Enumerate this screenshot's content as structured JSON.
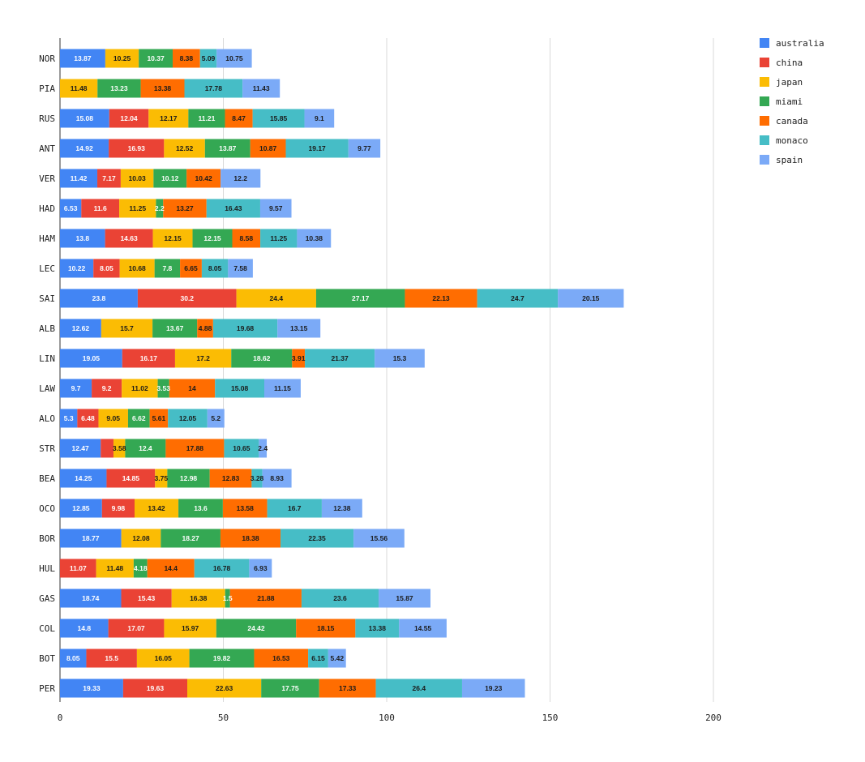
{
  "chart_data": {
    "type": "bar",
    "orientation": "horizontal",
    "stacked": true,
    "title": "",
    "xlabel": "",
    "ylabel": "",
    "xlim": [
      0,
      200
    ],
    "x_ticks": [
      0,
      50,
      100,
      150,
      200
    ],
    "grid": "vertical",
    "legend_position": "top-right",
    "categories": [
      "NOR",
      "PIA",
      "RUS",
      "ANT",
      "VER",
      "HAD",
      "HAM",
      "LEC",
      "SAI",
      "ALB",
      "LIN",
      "LAW",
      "ALO",
      "STR",
      "BEA",
      "OCO",
      "BOR",
      "HUL",
      "GAS",
      "COL",
      "BOT",
      "PER"
    ],
    "series": [
      {
        "name": "australia",
        "color": "#4285f4",
        "values": [
          13.87,
          0,
          15.08,
          14.92,
          11.42,
          6.53,
          13.8,
          10.22,
          23.8,
          12.62,
          19.05,
          9.7,
          5.3,
          12.47,
          14.25,
          12.85,
          18.77,
          0,
          18.74,
          14.8,
          8.05,
          19.33
        ]
      },
      {
        "name": "china",
        "color": "#ea4335",
        "values": [
          0,
          0,
          12.04,
          16.93,
          7.17,
          11.6,
          14.63,
          8.05,
          30.2,
          0,
          16.17,
          9.2,
          6.48,
          3.9,
          14.85,
          9.98,
          0,
          11.07,
          15.43,
          17.07,
          15.5,
          19.63
        ]
      },
      {
        "name": "japan",
        "color": "#fbbc04",
        "values": [
          10.25,
          11.48,
          12.17,
          12.52,
          10.03,
          11.25,
          12.15,
          10.68,
          24.4,
          15.7,
          17.2,
          11.02,
          9.05,
          3.58,
          3.75,
          13.42,
          12.08,
          11.48,
          16.38,
          15.97,
          16.05,
          22.63
        ]
      },
      {
        "name": "miami",
        "color": "#34a853",
        "values": [
          10.37,
          13.23,
          11.21,
          13.87,
          10.12,
          2.2,
          12.15,
          7.8,
          27.17,
          13.67,
          18.62,
          3.53,
          6.62,
          12.4,
          12.98,
          13.6,
          18.27,
          4.18,
          1.5,
          24.42,
          19.82,
          17.75
        ]
      },
      {
        "name": "canada",
        "color": "#ff6d01",
        "values": [
          8.38,
          13.38,
          8.47,
          10.87,
          10.42,
          13.27,
          8.58,
          6.65,
          22.13,
          4.88,
          3.91,
          14,
          5.61,
          17.88,
          12.83,
          13.58,
          18.38,
          14.4,
          21.88,
          18.15,
          16.53,
          17.33
        ]
      },
      {
        "name": "monaco",
        "color": "#46bdc6",
        "values": [
          5.09,
          17.78,
          15.85,
          19.17,
          0,
          16.43,
          11.25,
          8.05,
          24.7,
          19.68,
          21.37,
          15.08,
          12.05,
          10.65,
          3.28,
          16.7,
          22.35,
          16.78,
          23.6,
          13.38,
          6.15,
          26.4
        ]
      },
      {
        "name": "spain",
        "color": "#7baaf7",
        "values": [
          10.75,
          11.43,
          9.1,
          9.77,
          12.2,
          9.57,
          10.38,
          7.58,
          20.15,
          13.15,
          15.3,
          11.15,
          5.2,
          2.4,
          8.93,
          12.38,
          15.56,
          6.93,
          15.87,
          14.55,
          5.42,
          19.23
        ]
      }
    ],
    "data_labels": [
      [
        "13.87",
        "",
        "10.25",
        "10.37",
        "8.38",
        "5.09",
        "10.75"
      ],
      [
        "",
        "",
        "11.48",
        "13.23",
        "13.38",
        "17.78",
        "11.43"
      ],
      [
        "15.08",
        "12.04",
        "12.17",
        "11.21",
        "8.47",
        "15.85",
        "9.1"
      ],
      [
        "14.92",
        "16.93",
        "12.52",
        "13.87",
        "10.87",
        "19.17",
        "9.77"
      ],
      [
        "11.42",
        "7.17",
        "10.03",
        "10.12",
        "10.42",
        "",
        "12.2"
      ],
      [
        "6.53",
        "11.6",
        "11.25",
        "2.2",
        "13.27",
        "16.43",
        "9.57"
      ],
      [
        "13.8",
        "14.63",
        "12.15",
        "12.15",
        "8.58",
        "11.25",
        "10.38"
      ],
      [
        "10.22",
        "8.05",
        "10.68",
        "7.8",
        "6.65",
        "8.05",
        "7.58"
      ],
      [
        "23.8",
        "30.2",
        "24.4",
        "27.17",
        "22.13",
        "24.7",
        "20.15"
      ],
      [
        "12.62",
        "",
        "15.7",
        "13.67",
        "4.88",
        "19.68",
        "13.15"
      ],
      [
        "19.05",
        "16.17",
        "17.2",
        "18.62",
        "3.91",
        "21.37",
        "15.3"
      ],
      [
        "9.7",
        "9.2",
        "11.02",
        "3.53",
        "14",
        "15.08",
        "11.15"
      ],
      [
        "5.3",
        "6.48",
        "9.05",
        "6.62",
        "5.61",
        "12.05",
        "5.2"
      ],
      [
        "12.47",
        "",
        "3.58",
        "12.4",
        "17.88",
        "10.65",
        "2.4"
      ],
      [
        "14.25",
        "14.85",
        "3.75",
        "12.98",
        "12.83",
        "3.28",
        "8.93"
      ],
      [
        "12.85",
        "9.98",
        "13.42",
        "13.6",
        "13.58",
        "16.7",
        "12.38"
      ],
      [
        "18.77",
        "",
        "12.08",
        "18.27",
        "18.38",
        "22.35",
        "15.56"
      ],
      [
        "",
        "11.07",
        "11.48",
        "4.18",
        "14.4",
        "16.78",
        "6.93"
      ],
      [
        "18.74",
        "15.43",
        "16.38",
        "1.5",
        "21.88",
        "23.6",
        "15.87"
      ],
      [
        "14.8",
        "17.07",
        "15.97",
        "24.42",
        "18.15",
        "13.38",
        "14.55"
      ],
      [
        "8.05",
        "15.5",
        "16.05",
        "19.82",
        "16.53",
        "6.15",
        "5.42"
      ],
      [
        "19.33",
        "19.63",
        "22.63",
        "17.75",
        "17.33",
        "26.4",
        "19.23"
      ]
    ]
  }
}
